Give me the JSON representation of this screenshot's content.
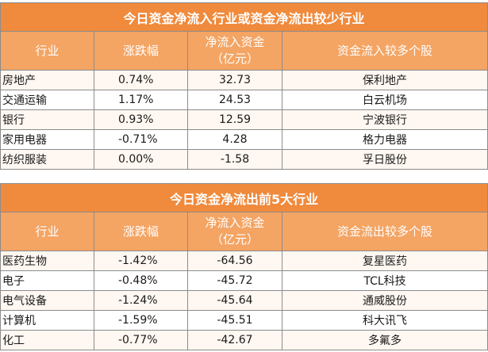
{
  "inflow_table": {
    "title": "今日资金净流入行业或资金净流出较少行业",
    "headers": {
      "industry": "行业",
      "change": "涨跌幅",
      "net_inflow_line1": "净流入资金",
      "net_inflow_line2": "（亿元）",
      "stocks": "资金流入较多个股"
    },
    "rows": [
      {
        "industry": "房地产",
        "change": "0.74%",
        "net_inflow": "32.73",
        "stock": "保利地产"
      },
      {
        "industry": "交通运输",
        "change": "1.17%",
        "net_inflow": "24.53",
        "stock": "白云机场"
      },
      {
        "industry": "银行",
        "change": "0.93%",
        "net_inflow": "12.59",
        "stock": "宁波银行"
      },
      {
        "industry": "家用电器",
        "change": "-0.71%",
        "net_inflow": "4.28",
        "stock": "格力电器"
      },
      {
        "industry": "纺织服装",
        "change": "0.00%",
        "net_inflow": "-1.58",
        "stock": "孚日股份"
      }
    ]
  },
  "outflow_table": {
    "title": "今日资金净流出前5大行业",
    "headers": {
      "industry": "行业",
      "change": "涨跌幅",
      "net_inflow_line1": "净流入资金",
      "net_inflow_line2": "（亿元）",
      "stocks": "资金流出较多个股"
    },
    "rows": [
      {
        "industry": "医药生物",
        "change": "-1.42%",
        "net_inflow": "-64.56",
        "stock": "复星医药"
      },
      {
        "industry": "电子",
        "change": "-0.48%",
        "net_inflow": "-45.72",
        "stock": "TCL科技"
      },
      {
        "industry": "电气设备",
        "change": "-1.24%",
        "net_inflow": "-45.64",
        "stock": "通威股份"
      },
      {
        "industry": "计算机",
        "change": "-1.59%",
        "net_inflow": "-45.51",
        "stock": "科大讯飞"
      },
      {
        "industry": "化工",
        "change": "-0.77%",
        "net_inflow": "-42.67",
        "stock": "多氟多"
      }
    ]
  }
}
